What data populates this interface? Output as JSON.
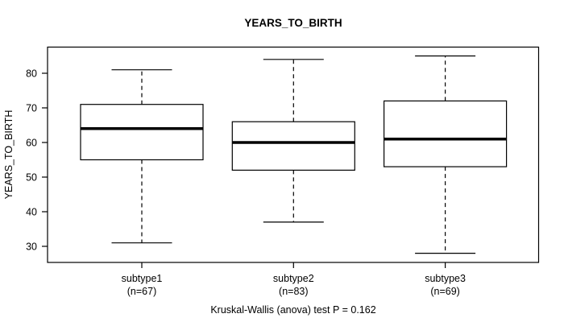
{
  "chart_data": {
    "type": "boxplot",
    "title": "YEARS_TO_BIRTH",
    "ylabel": "YEARS_TO_BIRTH",
    "xlabel": "",
    "yticks": [
      30,
      40,
      50,
      60,
      70,
      80
    ],
    "ylim": [
      25.5,
      87.5
    ],
    "grid": false,
    "legend": "none",
    "categories": [
      "subtype1",
      "subtype2",
      "subtype3"
    ],
    "series": [
      {
        "name": "subtype1",
        "sublabel": "(n=67)",
        "n": 67,
        "whisker_low": 31,
        "q1": 55,
        "median": 64,
        "q3": 71,
        "whisker_high": 81,
        "outliers": []
      },
      {
        "name": "subtype2",
        "sublabel": "(n=83)",
        "n": 83,
        "whisker_low": 37,
        "q1": 52,
        "median": 60,
        "q3": 66,
        "whisker_high": 84,
        "outliers": []
      },
      {
        "name": "subtype3",
        "sublabel": "(n=69)",
        "n": 69,
        "whisker_low": 28,
        "q1": 53,
        "median": 61,
        "q3": 72,
        "whisker_high": 85,
        "outliers": []
      }
    ],
    "footnote": "Kruskal-Wallis (anova) test P = 0.162",
    "test": {
      "name": "Kruskal-Wallis (anova) test",
      "p_value": 0.162
    },
    "colors": {
      "line": "#000000",
      "box_fill": "#ffffff",
      "background": "#ffffff",
      "text": "#000000"
    }
  }
}
